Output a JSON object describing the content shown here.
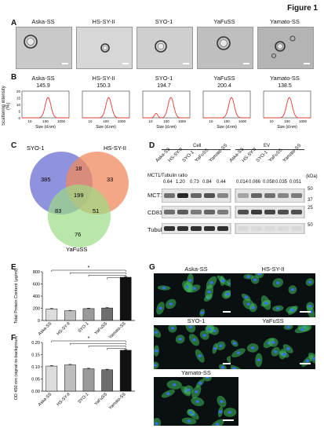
{
  "figure": {
    "title": "Figure 1",
    "panels": [
      "A",
      "B",
      "C",
      "D",
      "E",
      "F",
      "G"
    ]
  },
  "cell_lines": [
    "Aska-SS",
    "HS-SY-II",
    "SYO-1",
    "YaFuSS",
    "Yamato-SS"
  ],
  "panel_b": {
    "ylabel": "Scattering intensity (%)",
    "xlabel": "Size (d.nm)",
    "yticks": [
      "0",
      "5",
      "10",
      "15",
      "20"
    ],
    "xticks": [
      "10",
      "100",
      "1000"
    ],
    "peaks": [
      "145.9",
      "150.3",
      "194.7",
      "200.4",
      "138.5"
    ]
  },
  "panel_c": {
    "sets": [
      "SYO-1",
      "HS-SY-II",
      "YaFuSS"
    ],
    "counts": {
      "syo_only": "385",
      "hs_only": "33",
      "yafu_only": "76",
      "syo_hs": "18",
      "syo_yafu": "83",
      "hs_yafu": "51",
      "all": "199"
    },
    "colors": {
      "syo": "#7b7fd6",
      "hs": "#f08a5d",
      "yafu": "#9bdc84"
    }
  },
  "panel_d": {
    "group_cell": "Cell",
    "group_ev": "EV",
    "ratio_label": "MCT1/Tubulin ratio",
    "ratios_cell": [
      "0.64",
      "1.20",
      "0.73",
      "0.84",
      "0.44"
    ],
    "ratios_ev": [
      "0.014",
      "0.066",
      "0.058",
      "0.035",
      "0.051"
    ],
    "rows": [
      "MCT1",
      "CD81",
      "Tubulin"
    ],
    "kda_label": "(kDa)",
    "kda_marks": [
      "50",
      "37",
      "25",
      "50"
    ]
  },
  "chart_data": [
    {
      "type": "bar",
      "panel": "E",
      "categories": [
        "Aska-SS",
        "HS-SY-II",
        "SYO-1",
        "YaFuSS",
        "Yamato-SS"
      ],
      "values": [
        190,
        160,
        195,
        205,
        710
      ],
      "errors": [
        8,
        6,
        7,
        8,
        12
      ],
      "ylabel": "Total Protein Content (μg/ml)",
      "ylim": [
        0,
        800
      ],
      "yticks": [
        "0",
        "200",
        "400",
        "600",
        "800"
      ],
      "significance": "*",
      "colors": [
        "#dcdcdc",
        "#bdbdbd",
        "#9a9a9a",
        "#6e6e6e",
        "#111111"
      ]
    },
    {
      "type": "bar",
      "panel": "F",
      "categories": [
        "Aska-SS",
        "HS-SY-II",
        "SYO-1",
        "YaFuSS",
        "Yamato-SS"
      ],
      "values": [
        0.103,
        0.108,
        0.092,
        0.088,
        0.168
      ],
      "errors": [
        0.002,
        0.002,
        0.002,
        0.002,
        0.003
      ],
      "ylabel": "OD 450 nm (signal-to-background)",
      "ylim": [
        0.0,
        0.2
      ],
      "yticks": [
        "0.00",
        "0.05",
        "0.10",
        "0.15",
        "0.20"
      ],
      "significance": "*",
      "colors": [
        "#dcdcdc",
        "#bdbdbd",
        "#9a9a9a",
        "#6e6e6e",
        "#111111"
      ]
    }
  ]
}
